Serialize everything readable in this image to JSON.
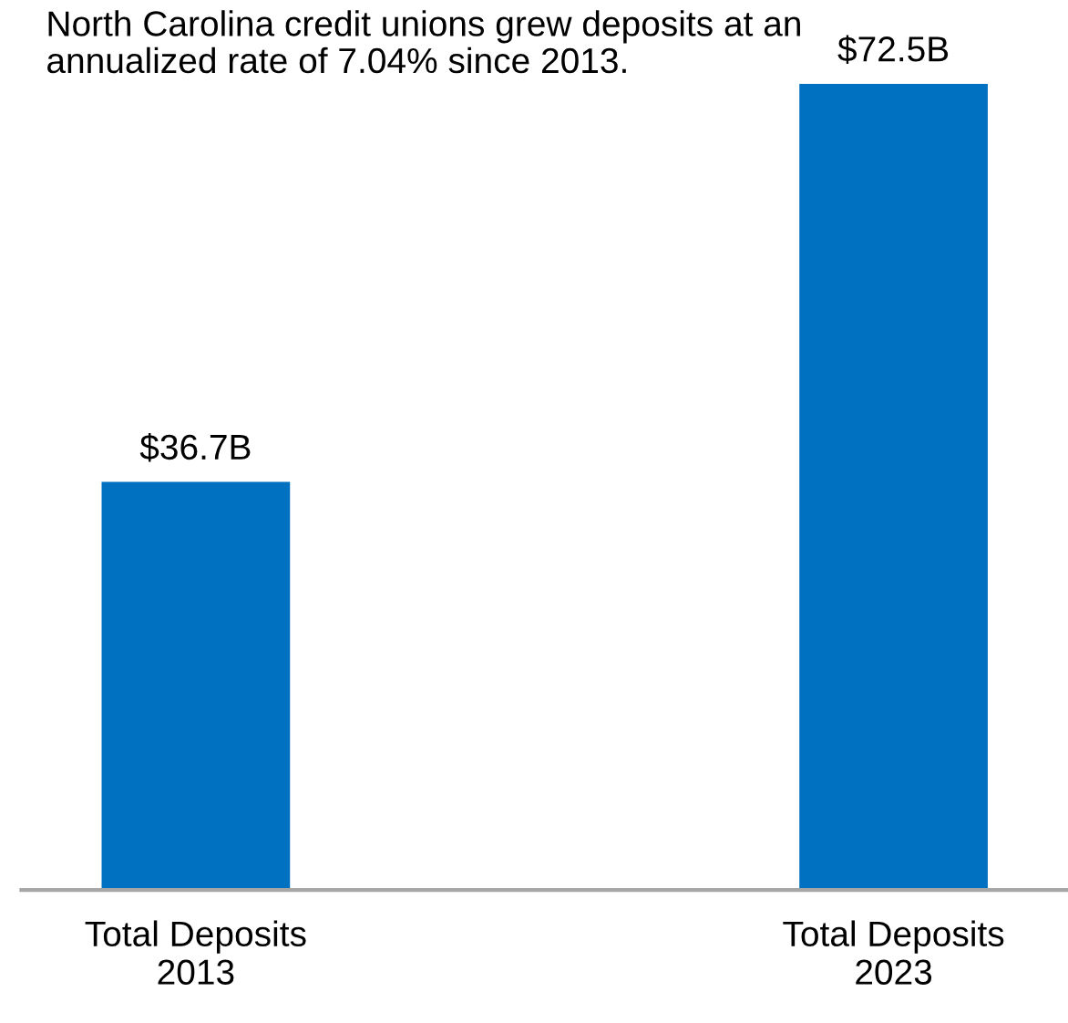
{
  "chart_data": {
    "type": "bar",
    "categories": [
      "Total Deposits\n2013",
      "Total Deposits\n2023"
    ],
    "values": [
      36.7,
      72.5
    ],
    "color": "#0070c0",
    "value_labels": [
      "$36.7B",
      "$72.5B"
    ],
    "annotations": [
      "North Carolina credit unions grew deposits at an annualized rate of 7.04% since 2013."
    ],
    "grid": false,
    "legend": false
  }
}
